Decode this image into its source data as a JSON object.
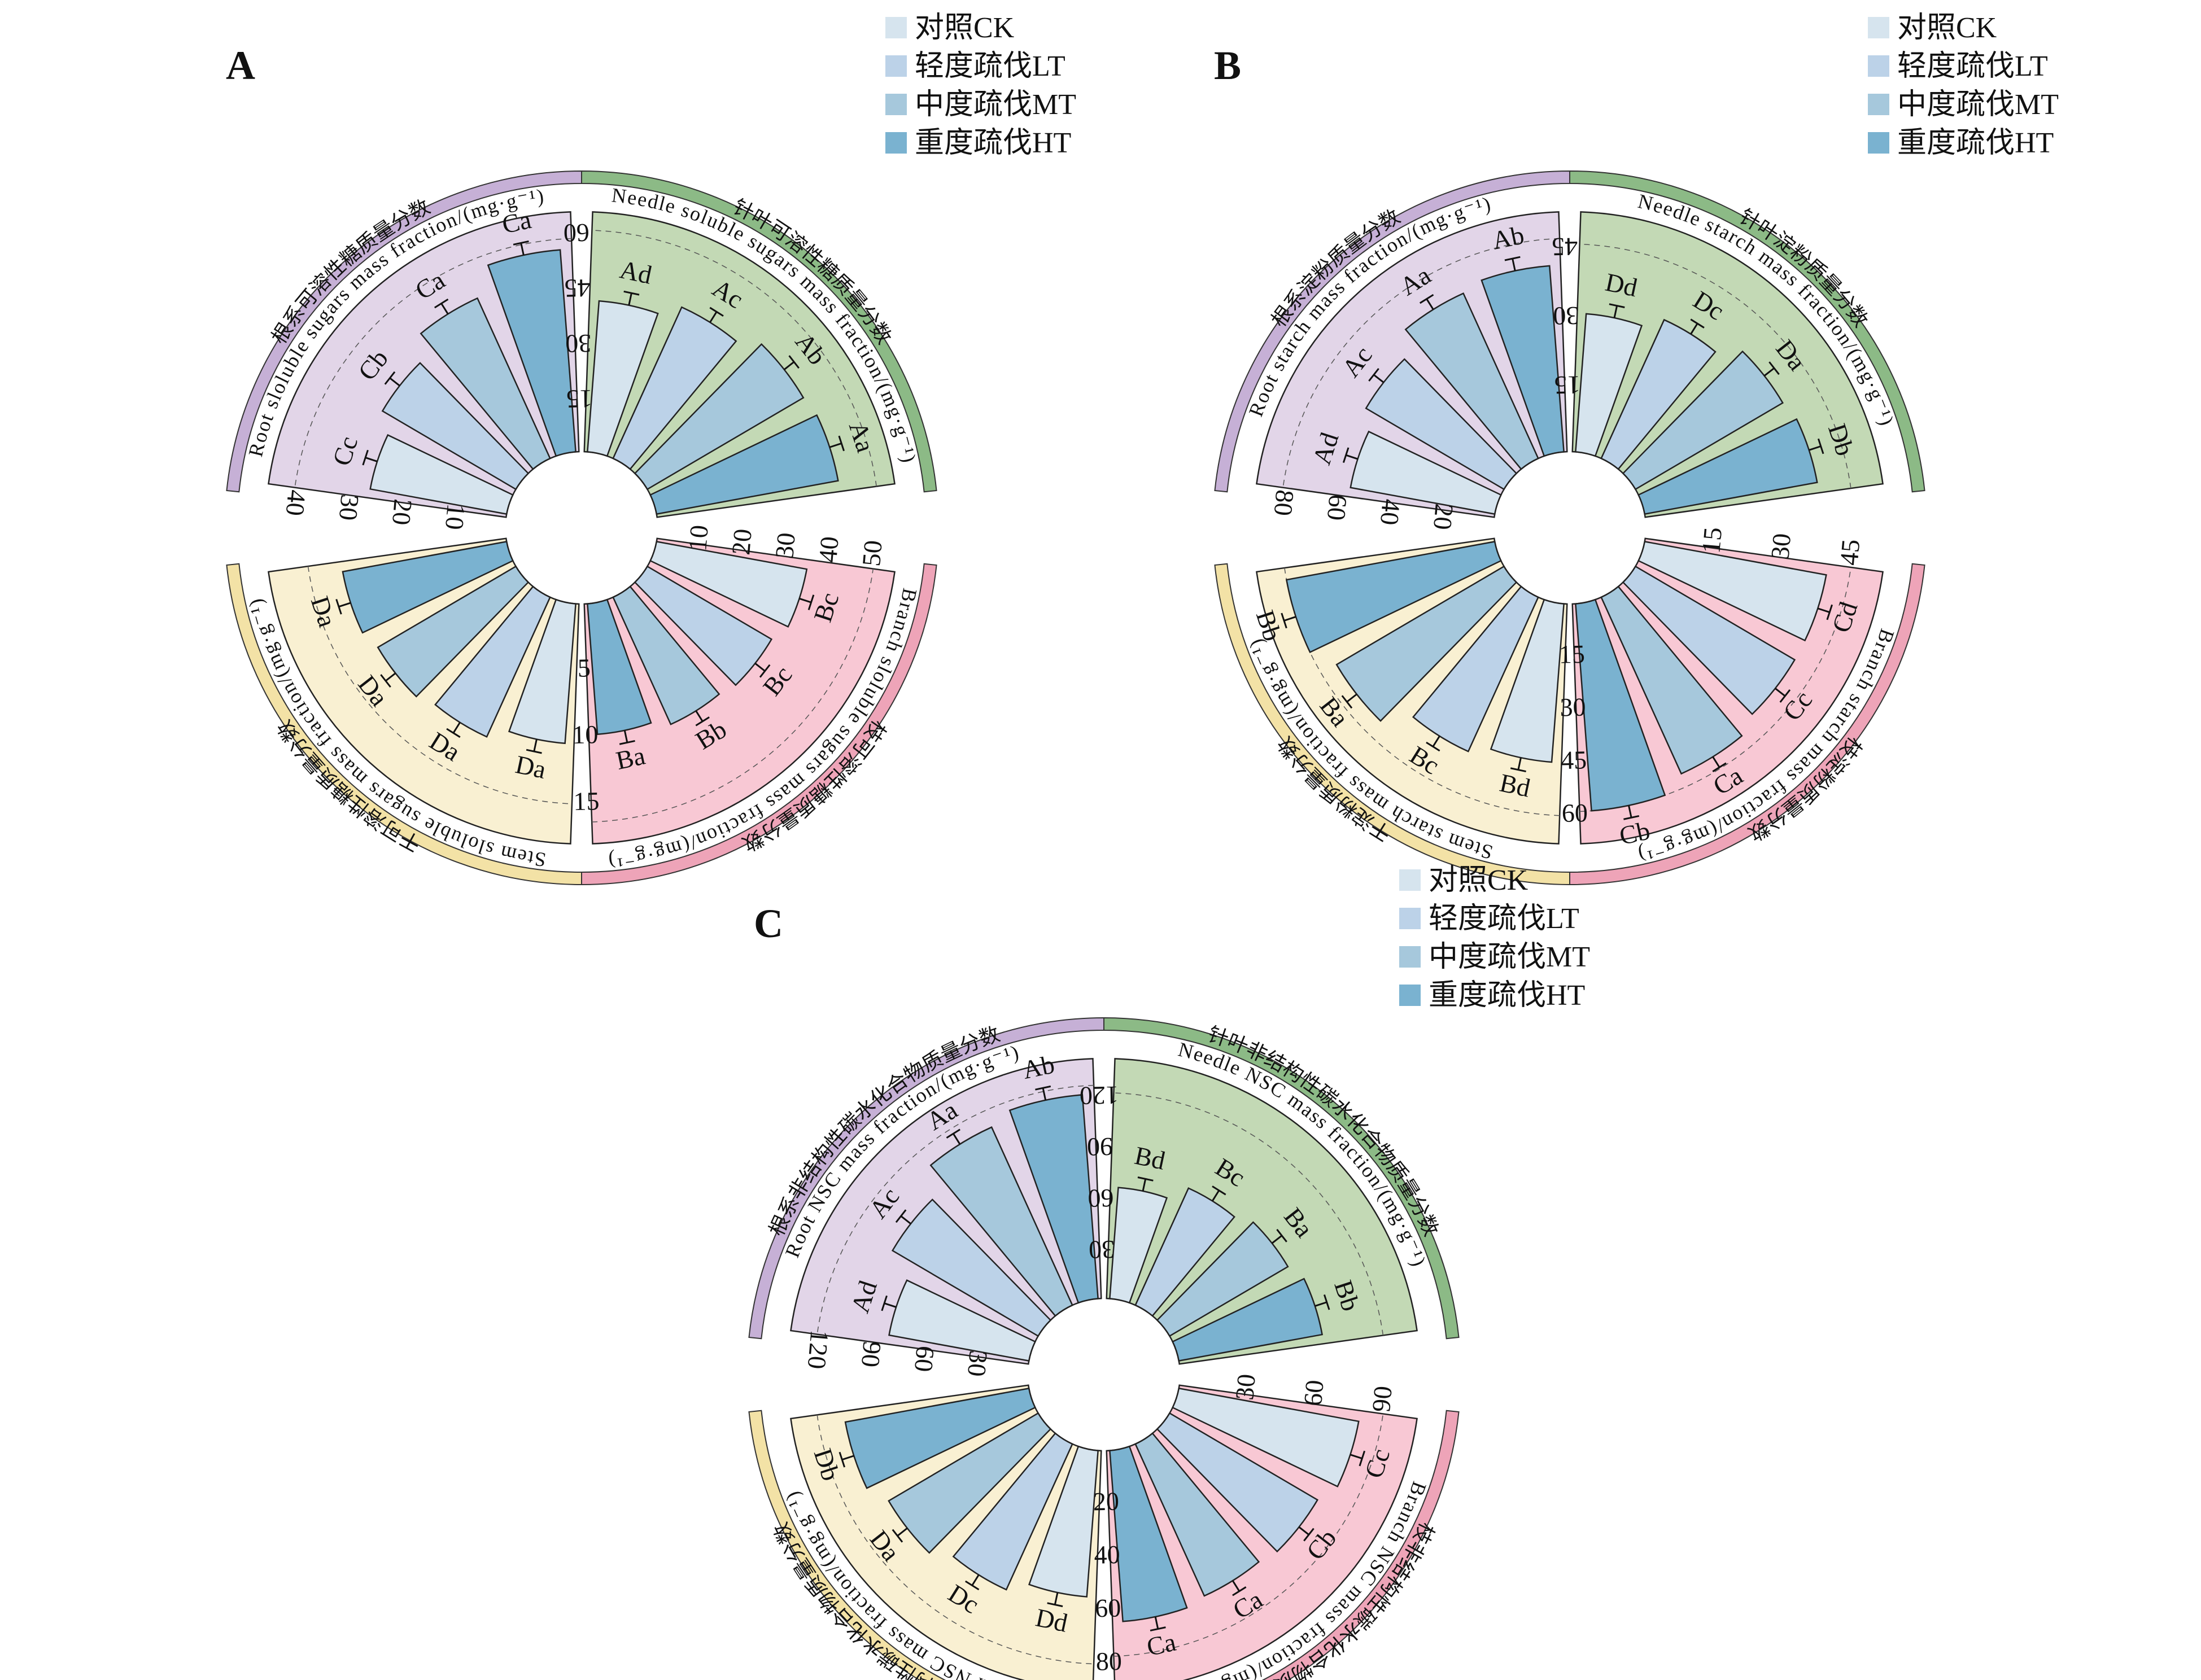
{
  "legend": [
    {
      "label": "对照CK",
      "color": "#d6e4ee"
    },
    {
      "label": "轻度疏伐LT",
      "color": "#bcd2e8"
    },
    {
      "label": "中度疏伐MT",
      "color": "#a6c8dc"
    },
    {
      "label": "重度疏伐HT",
      "color": "#7ab2d0"
    }
  ],
  "organ_colors": {
    "root": {
      "fill": "#e2d5e8",
      "band": "#c6b0d6"
    },
    "needle": {
      "fill": "#c3d9b5",
      "band": "#8cba86"
    },
    "branch": {
      "fill": "#f8c8d4",
      "band": "#eea4b8"
    },
    "stem": {
      "fill": "#f9f0d2",
      "band": "#f3e2a6"
    }
  },
  "chart_data": [
    {
      "panel": "A",
      "type": "bar",
      "subtype": "circular-bar",
      "categories": [
        "CK",
        "LT",
        "MT",
        "HT"
      ],
      "sectors": [
        {
          "organ": "root",
          "title_cn": "根系可溶性糖质量分数",
          "title_en": "Root sloluble sugars mass fraction/(mg·g⁻¹)",
          "ticks": [
            10,
            20,
            30,
            40
          ],
          "ylim": [
            0,
            45
          ],
          "values": [
            26,
            29,
            33,
            38
          ],
          "sig": [
            "Cc",
            "Cb",
            "Ca",
            "Ca"
          ]
        },
        {
          "organ": "needle",
          "title_cn": "针叶可溶性糖质量分数",
          "title_en": "Needle soluble sugars mass fraction/(mg·g⁻¹)",
          "ticks": [
            15,
            30,
            45,
            60
          ],
          "ylim": [
            0,
            65
          ],
          "values": [
            41,
            45,
            49,
            50
          ],
          "sig": [
            "Ad",
            "Ac",
            "Ab",
            "Aa"
          ]
        },
        {
          "organ": "branch",
          "title_cn": "枝可溶性糖质量分数",
          "title_en": "Branch sloluble sugars mass fraction/(mg·g⁻¹)",
          "ticks": [
            10,
            20,
            30,
            40,
            50
          ],
          "ylim": [
            0,
            55
          ],
          "values": [
            35,
            33,
            32,
            30
          ],
          "sig": [
            "Bc",
            "Bc",
            "Bb",
            "Ba"
          ]
        },
        {
          "organ": "stem",
          "title_cn": "干可溶性糖质量分数",
          "title_en": "Stem sloluble sugars mass fraction/(mg·g⁻¹)",
          "ticks": [
            5,
            10,
            15
          ],
          "ylim": [
            0,
            18
          ],
          "values": [
            10.5,
            11.5,
            12,
            12.5
          ],
          "sig": [
            "Da",
            "Da",
            "Da",
            "Da"
          ]
        }
      ]
    },
    {
      "panel": "B",
      "type": "bar",
      "subtype": "circular-bar",
      "categories": [
        "CK",
        "LT",
        "MT",
        "HT"
      ],
      "sectors": [
        {
          "organ": "root",
          "title_cn": "根系淀粉质量分数",
          "title_en": "Root starch mass fraction/(mg·g⁻¹)",
          "ticks": [
            20,
            40,
            60,
            80
          ],
          "ylim": [
            0,
            90
          ],
          "values": [
            55,
            60,
            68,
            70
          ],
          "sig": [
            "Ad",
            "Ac",
            "Aa",
            "Ab"
          ]
        },
        {
          "organ": "needle",
          "title_cn": "针叶淀粉质量分数",
          "title_en": "Needle starch mass fraction/(mg·g⁻¹)",
          "ticks": [
            15,
            30,
            45
          ],
          "ylim": [
            0,
            52
          ],
          "values": [
            30,
            33,
            37,
            38
          ],
          "sig": [
            "Dd",
            "Dc",
            "Da",
            "Db"
          ]
        },
        {
          "organ": "branch",
          "title_cn": "枝淀粉质量分数",
          "title_en": "Branch starch mass fraction/(mg·g⁻¹)",
          "ticks": [
            15,
            30,
            45
          ],
          "ylim": [
            0,
            52
          ],
          "values": [
            40,
            40,
            42,
            45
          ],
          "sig": [
            "Cd",
            "Cc",
            "Ca",
            "Cb"
          ]
        },
        {
          "organ": "stem",
          "title_cn": "干淀粉质量分数",
          "title_en": "Stem starch mass fraction/(mg·g⁻¹)",
          "ticks": [
            15,
            30,
            45,
            60
          ],
          "ylim": [
            0,
            68
          ],
          "values": [
            45,
            48,
            55,
            60
          ],
          "sig": [
            "Bd",
            "Bc",
            "Ba",
            "Bb"
          ]
        }
      ]
    },
    {
      "panel": "C",
      "type": "bar",
      "subtype": "circular-bar",
      "categories": [
        "CK",
        "LT",
        "MT",
        "HT"
      ],
      "sectors": [
        {
          "organ": "root",
          "title_cn": "根系非结构性碳水化合物质量分数",
          "title_en": "Root NSC mass fraction/(mg·g⁻¹)",
          "ticks": [
            30,
            60,
            90,
            120
          ],
          "ylim": [
            0,
            135
          ],
          "values": [
            80,
            95,
            110,
            115
          ],
          "sig": [
            "Ad",
            "Ac",
            "Aa",
            "Ab"
          ]
        },
        {
          "organ": "needle",
          "title_cn": "针叶非结构性碳水化合物质量分数",
          "title_en": "Needle NSC mass fraction/(mg·g⁻¹)",
          "ticks": [
            30,
            60,
            90,
            120
          ],
          "ylim": [
            0,
            140
          ],
          "values": [
            65,
            75,
            80,
            85
          ],
          "sig": [
            "Bd",
            "Bc",
            "Ba",
            "Bb"
          ]
        },
        {
          "organ": "branch",
          "title_cn": "枝非结构性碳水化合物质量分数",
          "title_en": "Branch NSC mass fraction/(mg·g⁻¹)",
          "ticks": [
            30,
            60,
            90
          ],
          "ylim": [
            0,
            105
          ],
          "values": [
            80,
            75,
            73,
            75
          ],
          "sig": [
            "Cc",
            "Cb",
            "Ca",
            "Ca"
          ]
        },
        {
          "organ": "stem",
          "title_cn": "干非结构性碳水化合物质量分数",
          "title_en": "Stem NSC mass fraction/(mg·g⁻¹)",
          "ticks": [
            20,
            40,
            60,
            80
          ],
          "ylim": [
            0,
            90
          ],
          "values": [
            55,
            60,
            65,
            70
          ],
          "sig": [
            "Dd",
            "Dc",
            "Da",
            "Db"
          ]
        }
      ]
    }
  ]
}
